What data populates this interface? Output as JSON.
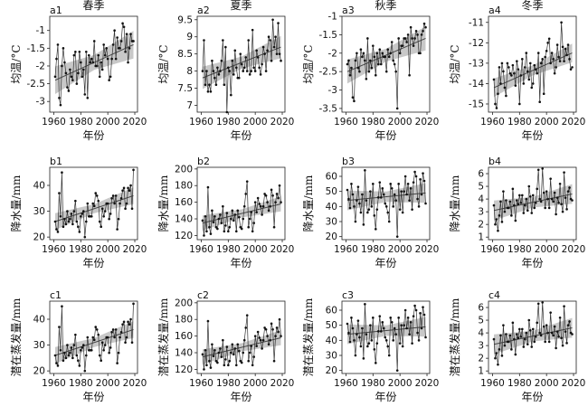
{
  "titles": [
    "春季",
    "夏季",
    "秋季",
    "冬季"
  ],
  "panel_labels": [
    [
      "a1",
      "a2",
      "a3",
      "a4"
    ],
    [
      "b1",
      "b2",
      "b3",
      "b4"
    ],
    [
      "c1",
      "c2",
      "c3",
      "c4"
    ]
  ],
  "row_ylabels": [
    "均温/°C",
    "降水量/mm",
    "潜在蒸发量/mm"
  ],
  "xlabel": "年份",
  "chart_data": [
    {
      "type": "line",
      "panel": "a1",
      "ylabel": "均温/°C",
      "xlabel": "年份",
      "xlim": [
        1957,
        2022
      ],
      "ylim": [
        -3.3,
        -0.6
      ],
      "xticks": [
        1960,
        1980,
        2000,
        2020
      ],
      "yticks": [
        -3.0,
        -2.5,
        -2.0,
        -1.5,
        -1.0
      ],
      "x_start": 1961,
      "y": [
        -2.3,
        -1.8,
        -1.4,
        -2.9,
        -3.1,
        -2.0,
        -1.5,
        -1.9,
        -2.2,
        -2.6,
        -2.7,
        -2.1,
        -2.3,
        -2.4,
        -1.7,
        -1.6,
        -2.5,
        -2.2,
        -1.6,
        -1.9,
        -2.3,
        -2.1,
        -2.8,
        -1.6,
        -2.9,
        -1.7,
        -1.9,
        -1.8,
        -1.9,
        -1.3,
        -2.0,
        -2.0,
        -1.7,
        -2.3,
        -1.9,
        -2.1,
        -1.4,
        -1.7,
        -1.5,
        -1.8,
        -2.4,
        -2.3,
        -1.8,
        -1.4,
        -1.0,
        -1.8,
        -1.2,
        -1.5,
        -1.5,
        -1.3,
        -0.8,
        -0.9,
        -1.6,
        -1.1,
        -1.9,
        -1.5,
        -1.1,
        -1.3,
        -1.3
      ],
      "trend": [
        -2.4,
        -1.4
      ],
      "band": 0.3
    },
    {
      "type": "line",
      "panel": "a2",
      "ylabel": "均温/°C",
      "xlabel": "年份",
      "xlim": [
        1957,
        2022
      ],
      "ylim": [
        6.8,
        9.6
      ],
      "xticks": [
        1960,
        1980,
        2000,
        2020
      ],
      "yticks": [
        7.0,
        7.5,
        8.0,
        8.5,
        9.0,
        9.5
      ],
      "x_start": 1961,
      "y": [
        8.0,
        8.9,
        7.6,
        8.0,
        7.4,
        7.6,
        7.4,
        8.3,
        8.0,
        7.8,
        7.6,
        8.1,
        7.9,
        8.0,
        8.3,
        8.9,
        7.6,
        8.7,
        6.8,
        8.1,
        8.0,
        7.3,
        8.3,
        7.9,
        8.6,
        8.1,
        7.8,
        7.8,
        8.5,
        8.2,
        8.0,
        8.1,
        8.4,
        8.0,
        8.9,
        7.9,
        8.0,
        9.2,
        8.1,
        8.0,
        8.6,
        8.4,
        8.1,
        7.9,
        8.2,
        8.7,
        8.5,
        8.0,
        8.6,
        9.0,
        8.9,
        8.3,
        9.5,
        8.7,
        9.0,
        8.5,
        9.4,
        8.5,
        8.3
      ],
      "trend": [
        7.8,
        8.7
      ],
      "band": 0.25
    },
    {
      "type": "line",
      "panel": "a3",
      "ylabel": "均温/°C",
      "xlabel": "年份",
      "xlim": [
        1957,
        2022
      ],
      "ylim": [
        -3.6,
        -1.0
      ],
      "xticks": [
        1960,
        1980,
        2000,
        2020
      ],
      "yticks": [
        -3.5,
        -3.0,
        -2.5,
        -2.0,
        -1.5,
        -1.0
      ],
      "x_start": 1961,
      "y": [
        -2.3,
        -2.2,
        -2.6,
        -2.4,
        -3.2,
        -3.3,
        -2.2,
        -2.0,
        -2.4,
        -2.5,
        -1.9,
        -2.1,
        -2.0,
        -2.2,
        -2.7,
        -1.6,
        -2.5,
        -2.2,
        -2.4,
        -1.8,
        -2.1,
        -2.6,
        -2.0,
        -2.3,
        -1.9,
        -2.3,
        -2.0,
        -2.1,
        -2.1,
        -2.5,
        -1.9,
        -2.1,
        -2.0,
        -1.7,
        -2.2,
        -2.3,
        -2.5,
        -3.5,
        -1.6,
        -2.0,
        -1.8,
        -1.8,
        -1.6,
        -1.6,
        -1.7,
        -1.5,
        -2.6,
        -1.3,
        -1.6,
        -1.8,
        -1.6,
        -1.4,
        -1.5,
        -2.0,
        -2.0,
        -1.5,
        -1.4,
        -1.2,
        -1.3
      ],
      "trend": [
        -2.5,
        -1.6
      ],
      "band": 0.25
    },
    {
      "type": "line",
      "panel": "a4",
      "ylabel": "均温/°C",
      "xlabel": "年份",
      "xlim": [
        1957,
        2022
      ],
      "ylim": [
        -15.4,
        -10.7
      ],
      "xticks": [
        1960,
        1980,
        2000,
        2020
      ],
      "yticks": [
        -15,
        -14,
        -13,
        -12,
        -11
      ],
      "x_start": 1961,
      "y": [
        -13.8,
        -15.0,
        -15.2,
        -14.5,
        -13.2,
        -14.0,
        -13.0,
        -13.4,
        -14.2,
        -14.6,
        -13.0,
        -13.2,
        -13.5,
        -13.6,
        -13.1,
        -13.5,
        -14.1,
        -12.9,
        -13.3,
        -15.0,
        -13.6,
        -12.8,
        -14.0,
        -13.2,
        -12.5,
        -13.4,
        -13.8,
        -13.0,
        -14.2,
        -14.0,
        -13.1,
        -13.3,
        -13.5,
        -12.5,
        -14.9,
        -13.0,
        -12.8,
        -14.5,
        -12.7,
        -12.4,
        -12.0,
        -11.8,
        -13.0,
        -12.5,
        -12.8,
        -13.5,
        -13.2,
        -12.1,
        -12.7,
        -12.9,
        -11.0,
        -12.2,
        -12.9,
        -12.3,
        -12.6,
        -12.1,
        -12.8,
        -13.3,
        -13.2
      ],
      "trend": [
        -14.2,
        -12.5
      ],
      "band": 0.35
    },
    {
      "type": "line",
      "panel": "b1",
      "ylabel": "降水量/mm",
      "xlabel": "年份",
      "xlim": [
        1957,
        2022
      ],
      "ylim": [
        19,
        47
      ],
      "xticks": [
        1960,
        1980,
        2000,
        2020
      ],
      "yticks": [
        20,
        30,
        40
      ],
      "x_start": 1961,
      "y": [
        26,
        23,
        22,
        37,
        28,
        45,
        24,
        27,
        25,
        30,
        26,
        27,
        29,
        25,
        30,
        34,
        26,
        24,
        22,
        28,
        29,
        30,
        20,
        26,
        33,
        28,
        28,
        28,
        33,
        32,
        37,
        36,
        34,
        26,
        24,
        31,
        28,
        30,
        33,
        33,
        27,
        29,
        35,
        36,
        33,
        36,
        23,
        27,
        33,
        35,
        38,
        39,
        31,
        33,
        39,
        38,
        40,
        31,
        46
      ],
      "trend": [
        26,
        36
      ],
      "band": 2.5
    },
    {
      "type": "line",
      "panel": "b2",
      "ylabel": "降水量/mm",
      "xlabel": "年份",
      "xlim": [
        1957,
        2022
      ],
      "ylim": [
        115,
        202
      ],
      "xticks": [
        1960,
        1980,
        2000,
        2020
      ],
      "yticks": [
        120,
        140,
        160,
        180,
        200
      ],
      "x_start": 1961,
      "y": [
        138,
        120,
        143,
        125,
        178,
        130,
        122,
        150,
        136,
        143,
        130,
        128,
        140,
        145,
        135,
        155,
        125,
        132,
        147,
        125,
        130,
        140,
        150,
        138,
        145,
        125,
        150,
        142,
        130,
        128,
        140,
        155,
        170,
        185,
        130,
        140,
        148,
        125,
        135,
        160,
        148,
        165,
        158,
        155,
        145,
        155,
        170,
        168,
        160,
        150,
        155,
        175,
        168,
        130,
        160,
        170,
        165,
        180,
        160
      ],
      "trend": [
        135,
        158
      ],
      "band": 7
    },
    {
      "type": "line",
      "panel": "b3",
      "ylabel": "降水量/mm",
      "xlabel": "年份",
      "xlim": [
        1957,
        2022
      ],
      "ylim": [
        18,
        66
      ],
      "xticks": [
        1960,
        1980,
        2000,
        2020
      ],
      "yticks": [
        20,
        30,
        40,
        50,
        60
      ],
      "x_start": 1961,
      "y": [
        51,
        45,
        39,
        55,
        48,
        40,
        30,
        44,
        53,
        42,
        36,
        48,
        28,
        64,
        44,
        36,
        38,
        50,
        40,
        55,
        34,
        25,
        38,
        46,
        56,
        46,
        52,
        48,
        42,
        40,
        36,
        30,
        55,
        52,
        40,
        48,
        44,
        20,
        55,
        38,
        50,
        36,
        50,
        60,
        48,
        55,
        44,
        52,
        38,
        56,
        63,
        60,
        45,
        40,
        58,
        48,
        62,
        57,
        42
      ],
      "trend": [
        44,
        49
      ],
      "band": 5
    },
    {
      "type": "line",
      "panel": "b4",
      "ylabel": "降水量/mm",
      "xlabel": "年份",
      "xlim": [
        1957,
        2022
      ],
      "ylim": [
        0.8,
        6.5
      ],
      "xticks": [
        1960,
        1980,
        2000,
        2020
      ],
      "yticks": [
        1,
        2,
        3,
        4,
        5,
        6
      ],
      "x_start": 1961,
      "y": [
        3.5,
        2.0,
        2.4,
        1.5,
        2.7,
        3.8,
        2.2,
        4.6,
        3.0,
        3.9,
        3.3,
        3.3,
        3.8,
        2.7,
        4.8,
        3.5,
        2.3,
        3.9,
        3.6,
        4.3,
        3.7,
        4.3,
        2.9,
        3.5,
        4.0,
        3.1,
        5.0,
        4.2,
        2.9,
        4.3,
        3.3,
        3.7,
        4.8,
        6.3,
        4.0,
        3.8,
        6.4,
        4.5,
        3.3,
        4.6,
        4.0,
        3.3,
        5.6,
        4.0,
        3.8,
        4.5,
        2.8,
        4.1,
        3.7,
        5.2,
        3.6,
        3.0,
        6.1,
        4.1,
        3.2,
        4.6,
        4.9,
        4.0,
        3.9
      ],
      "trend": [
        3.1,
        4.4
      ],
      "band": 0.6
    },
    {
      "type": "line",
      "panel": "c1",
      "ylabel": "潜在蒸发量/mm",
      "xlabel": "年份",
      "xlim": [
        1957,
        2022
      ],
      "ylim": [
        19,
        47
      ],
      "xticks": [
        1960,
        1980,
        2000,
        2020
      ],
      "yticks": [
        20,
        30,
        40
      ],
      "x_start": 1961,
      "y": [
        26,
        23,
        22,
        37,
        28,
        45,
        24,
        27,
        25,
        30,
        26,
        27,
        29,
        25,
        30,
        34,
        26,
        24,
        22,
        28,
        29,
        30,
        20,
        26,
        33,
        28,
        28,
        28,
        33,
        32,
        37,
        36,
        34,
        26,
        24,
        31,
        28,
        30,
        33,
        33,
        27,
        29,
        35,
        36,
        33,
        36,
        23,
        27,
        33,
        35,
        38,
        39,
        31,
        33,
        39,
        38,
        40,
        31,
        46
      ],
      "trend": [
        26,
        36
      ],
      "band": 2.5
    },
    {
      "type": "line",
      "panel": "c2",
      "ylabel": "潜在蒸发量/mm",
      "xlabel": "年份",
      "xlim": [
        1957,
        2022
      ],
      "ylim": [
        115,
        202
      ],
      "xticks": [
        1960,
        1980,
        2000,
        2020
      ],
      "yticks": [
        120,
        140,
        160,
        180,
        200
      ],
      "x_start": 1961,
      "y": [
        138,
        120,
        143,
        125,
        178,
        130,
        122,
        150,
        136,
        143,
        130,
        128,
        140,
        145,
        135,
        155,
        125,
        132,
        147,
        125,
        130,
        140,
        150,
        138,
        145,
        125,
        150,
        142,
        130,
        128,
        140,
        155,
        170,
        185,
        130,
        140,
        148,
        125,
        135,
        160,
        148,
        165,
        158,
        155,
        145,
        155,
        170,
        168,
        160,
        150,
        155,
        175,
        168,
        130,
        160,
        170,
        165,
        180,
        160
      ],
      "trend": [
        135,
        158
      ],
      "band": 7
    },
    {
      "type": "line",
      "panel": "c3",
      "ylabel": "潜在蒸发量/mm",
      "xlabel": "年份",
      "xlim": [
        1957,
        2022
      ],
      "ylim": [
        18,
        66
      ],
      "xticks": [
        1960,
        1980,
        2000,
        2020
      ],
      "yticks": [
        20,
        30,
        40,
        50,
        60
      ],
      "x_start": 1961,
      "y": [
        51,
        45,
        39,
        55,
        48,
        40,
        30,
        44,
        53,
        42,
        36,
        48,
        28,
        64,
        44,
        36,
        38,
        50,
        40,
        55,
        34,
        25,
        38,
        46,
        56,
        46,
        52,
        48,
        42,
        40,
        36,
        30,
        55,
        52,
        40,
        48,
        44,
        20,
        55,
        38,
        50,
        36,
        50,
        60,
        48,
        55,
        44,
        52,
        38,
        56,
        63,
        60,
        45,
        40,
        58,
        48,
        62,
        57,
        42
      ],
      "trend": [
        44,
        49
      ],
      "band": 5
    },
    {
      "type": "line",
      "panel": "c4",
      "ylabel": "潜在蒸发量/mm",
      "xlabel": "年份",
      "xlim": [
        1957,
        2022
      ],
      "ylim": [
        0.8,
        6.5
      ],
      "xticks": [
        1960,
        1980,
        2000,
        2020
      ],
      "yticks": [
        1,
        2,
        3,
        4,
        5,
        6
      ],
      "x_start": 1961,
      "y": [
        3.5,
        2.0,
        2.4,
        1.5,
        2.7,
        3.8,
        2.2,
        4.6,
        3.0,
        3.9,
        3.3,
        3.3,
        3.8,
        2.7,
        4.8,
        3.5,
        2.3,
        3.9,
        3.6,
        4.3,
        3.7,
        4.3,
        2.9,
        3.5,
        4.0,
        3.1,
        5.0,
        4.2,
        2.9,
        4.3,
        3.3,
        3.7,
        4.8,
        6.3,
        4.0,
        3.8,
        6.4,
        4.5,
        3.3,
        4.6,
        4.0,
        3.3,
        5.6,
        4.0,
        3.8,
        4.5,
        2.8,
        4.1,
        3.7,
        5.2,
        3.6,
        3.0,
        6.1,
        4.1,
        3.2,
        4.6,
        4.9,
        4.0,
        3.9
      ],
      "trend": [
        3.1,
        4.4
      ],
      "band": 0.6
    }
  ]
}
